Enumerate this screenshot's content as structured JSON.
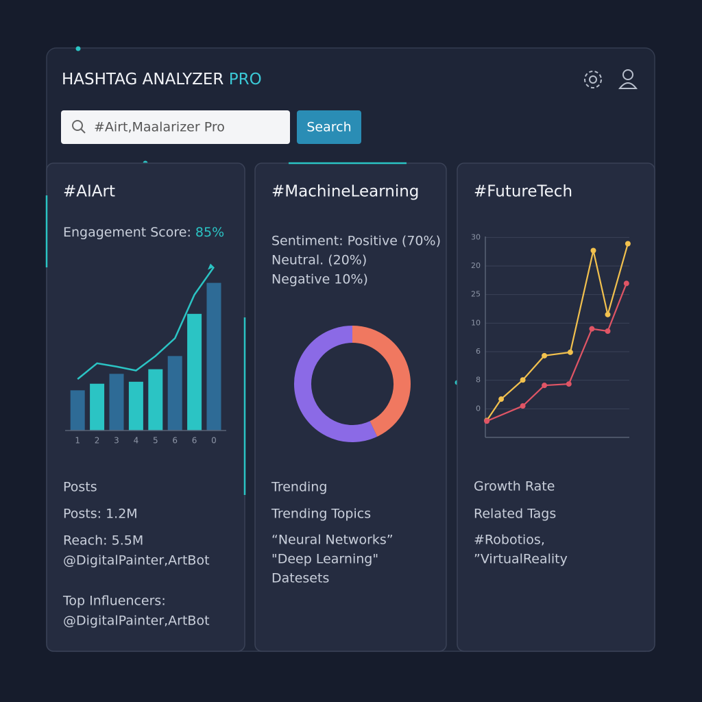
{
  "header": {
    "title": "HASHTAG ANALYZER",
    "accent": "PRO"
  },
  "search": {
    "query": "#Airt,Maalarizer Pro",
    "button": "Search"
  },
  "cards": [
    {
      "title": "#AIArt",
      "metric_label": "Engagement Score:",
      "metric_value": "85%",
      "chart_data": {
        "type": "bar",
        "categories": [
          "1",
          "2",
          "3",
          "4",
          "5",
          "6",
          "6",
          "0"
        ],
        "values": [
          6.1,
          7.1,
          8.6,
          7.4,
          9.3,
          11.3,
          17.7,
          22.4
        ],
        "colors": [
          "#2e6b96",
          "#2bc4c4",
          "#2e6b96",
          "#2bc4c4",
          "#2bc4c4",
          "#2e6b96",
          "#2bc4c4",
          "#2e6b96"
        ],
        "line_values": [
          7.8,
          10.2,
          9.7,
          9.1,
          11.3,
          14.0,
          20.6,
          24.8
        ],
        "line_color": "#2bc4c4",
        "ylim": [
          0,
          26
        ]
      },
      "lines": [
        "Posts",
        "Posts: 1.2M",
        "Reach: 5.5M",
        "@DigitalPainter,ArtBot",
        "Top Influencers:",
        "@DigitalPainter,ArtBot"
      ]
    },
    {
      "title": "#MachineLearning",
      "sentiment": [
        "Sentiment: Positive (70%)",
        "Neutral. (20%)",
        "Negative  10%)"
      ],
      "chart_data": {
        "type": "pie",
        "donut": true,
        "values": [
          43,
          57
        ],
        "colors": [
          "#f07860",
          "#8b6ae6"
        ]
      },
      "lines": [
        "Trending",
        "Trending Topics",
        "“Neural Networks”",
        "\"Deep Learning\"",
        "Datesets"
      ]
    },
    {
      "title": "#FutureTech",
      "chart_data": {
        "type": "line",
        "xlim": [
          0,
          10
        ],
        "ylim": [
          -1,
          6.2
        ],
        "grid": true,
        "yticks": [
          {
            "value": 0,
            "label": "0"
          },
          {
            "value": 1,
            "label": "8"
          },
          {
            "value": 2,
            "label": "6"
          },
          {
            "value": 3,
            "label": "10"
          },
          {
            "value": 4,
            "label": "25"
          },
          {
            "value": 5,
            "label": "20"
          },
          {
            "value": 6,
            "label": "30"
          }
        ],
        "series": [
          {
            "color": "#f2c14e",
            "x": [
              0.1,
              1.1,
              2.6,
              4.1,
              5.9,
              7.5,
              8.5,
              9.9
            ],
            "values": [
              -0.41,
              0.34,
              1.01,
              1.86,
              1.98,
              5.54,
              3.3,
              5.78
            ]
          },
          {
            "color": "#e05565",
            "x": [
              0.1,
              2.6,
              4.1,
              5.8,
              7.4,
              8.5,
              9.8
            ],
            "values": [
              -0.43,
              0.1,
              0.82,
              0.87,
              2.8,
              2.72,
              4.39
            ]
          }
        ]
      },
      "lines": [
        "Growth Rate",
        "Related Tags",
        "#Robotios,",
        "”VirtualReality"
      ]
    }
  ]
}
